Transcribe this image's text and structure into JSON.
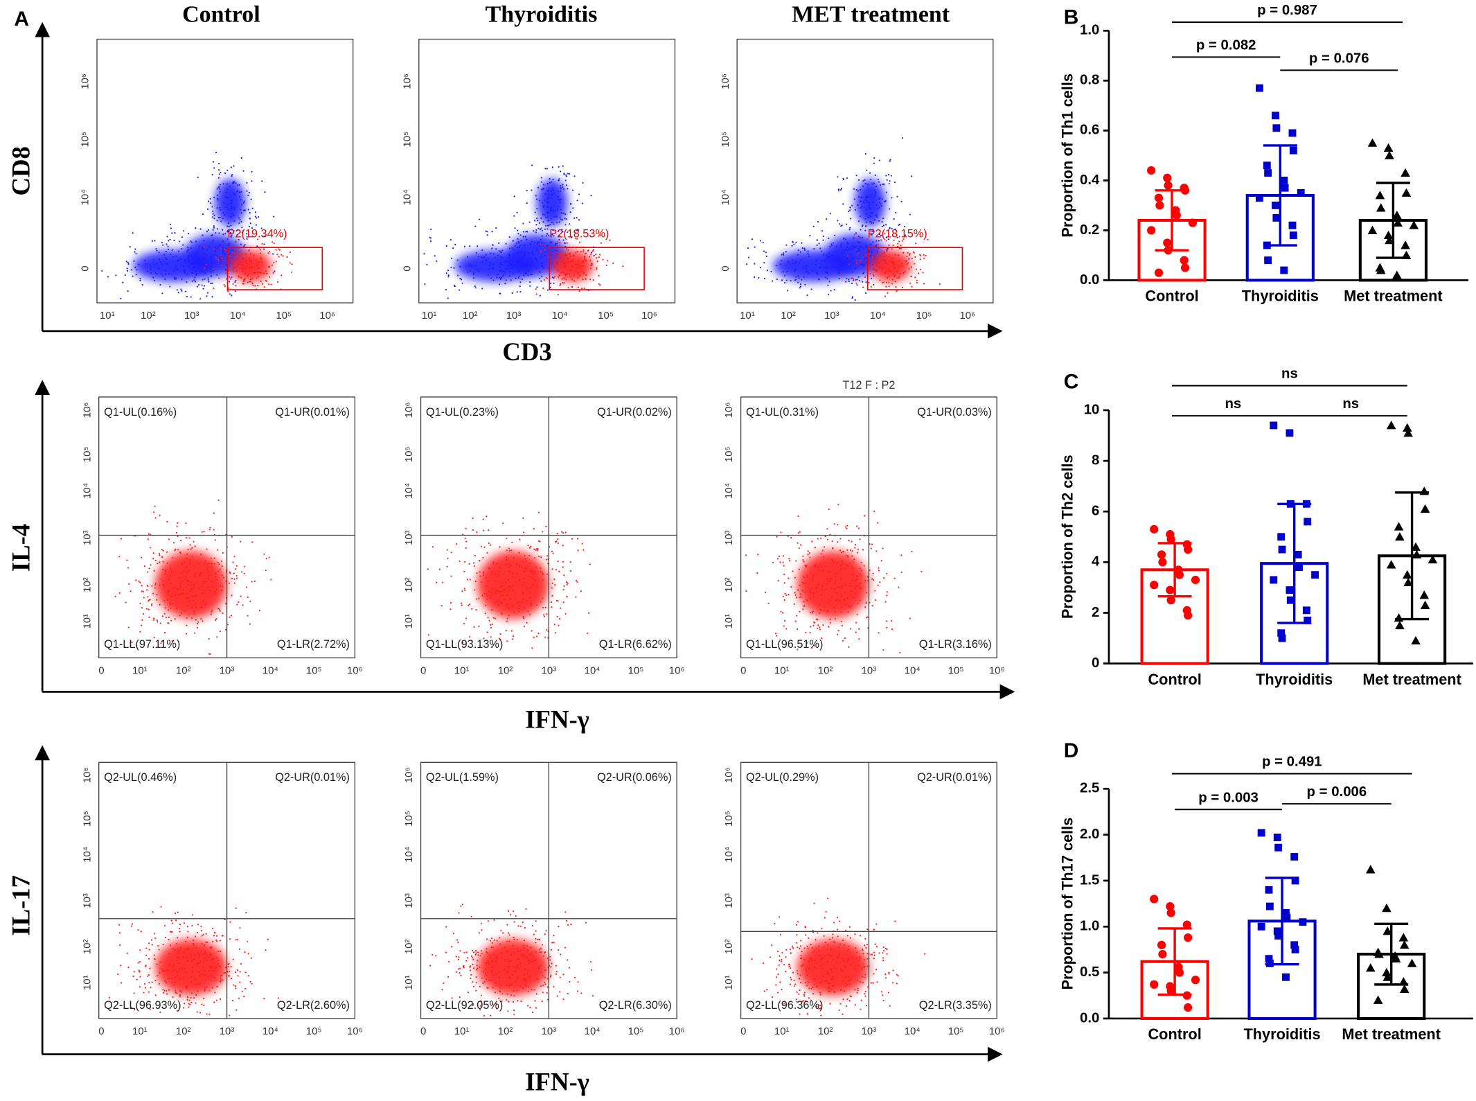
{
  "flow": {
    "label": "A",
    "columns": [
      "Control",
      "Thyroiditis",
      "MET treatment"
    ],
    "rows": [
      {
        "y_axis": "CD8",
        "x_axis": "CD3",
        "x_ticks": [
          "10¹",
          "10²",
          "10³",
          "10⁴",
          "10⁵",
          "10⁶"
        ],
        "y_ticks": [
          "0",
          "10⁴",
          "10⁵",
          "10⁶"
        ],
        "plots": [
          {
            "gates": [
              "P2(19.34%)"
            ]
          },
          {
            "gates": [
              "P2(18.53%)"
            ]
          },
          {
            "gates": [
              "P2(18.15%)"
            ]
          }
        ]
      },
      {
        "y_axis": "IL-4",
        "x_axis": "IFN-γ",
        "x_ticks": [
          "0",
          "10¹",
          "10²",
          "10³",
          "10⁴",
          "10⁵",
          "10⁶"
        ],
        "y_ticks": [
          "10¹",
          "10²",
          "10³",
          "10⁴",
          "10⁵",
          "10⁶"
        ],
        "plots": [
          {
            "gates": [
              "Q1-UL(0.16%)",
              "Q1-UR(0.01%)",
              "Q1-LL(97.11%)",
              "Q1-LR(2.72%)"
            ]
          },
          {
            "gates": [
              "Q1-UL(0.23%)",
              "Q1-UR(0.02%)",
              "Q1-LL(93.13%)",
              "Q1-LR(6.62%)"
            ]
          },
          {
            "title": "T12 F : P2",
            "gates": [
              "Q1-UL(0.31%)",
              "Q1-UR(0.03%)",
              "Q1-LL(96.51%)",
              "Q1-LR(3.16%)"
            ]
          }
        ]
      },
      {
        "y_axis": "IL-17",
        "x_axis": "IFN-γ",
        "x_ticks": [
          "0",
          "10¹",
          "10²",
          "10³",
          "10⁴",
          "10⁵",
          "10⁶"
        ],
        "y_ticks": [
          "10¹",
          "10²",
          "10³",
          "10⁴",
          "10⁵",
          "10⁶"
        ],
        "plots": [
          {
            "gates": [
              "Q2-UL(0.46%)",
              "Q2-UR(0.01%)",
              "Q2-LL(96.93%)",
              "Q2-LR(2.60%)"
            ]
          },
          {
            "gates": [
              "Q2-UL(1.59%)",
              "Q2-UR(0.06%)",
              "Q2-LL(92.05%)",
              "Q2-LR(6.30%)"
            ]
          },
          {
            "gates": [
              "Q2-UL(0.29%)",
              "Q2-UR(0.01%)",
              "Q2-LL(96.36%)",
              "Q2-LR(3.35%)"
            ]
          }
        ]
      }
    ]
  },
  "chart_data": [
    {
      "type": "bar",
      "label": "B",
      "ylabel": "Proportion of Th1 cells",
      "categories": [
        "Control",
        "Thyroiditis",
        "Met treatment"
      ],
      "colors": [
        "#ff0000",
        "#0000cc",
        "#000000"
      ],
      "values": [
        0.24,
        0.34,
        0.24
      ],
      "errors": [
        0.12,
        0.2,
        0.15
      ],
      "points": [
        [
          0.44,
          0.41,
          0.38,
          0.37,
          0.36,
          0.33,
          0.3,
          0.28,
          0.26,
          0.23,
          0.2,
          0.15,
          0.12,
          0.08,
          0.05,
          0.03
        ],
        [
          0.77,
          0.66,
          0.61,
          0.59,
          0.52,
          0.46,
          0.43,
          0.4,
          0.37,
          0.35,
          0.33,
          0.3,
          0.25,
          0.22,
          0.18,
          0.14,
          0.08,
          0.04
        ],
        [
          0.55,
          0.53,
          0.5,
          0.43,
          0.35,
          0.34,
          0.29,
          0.26,
          0.23,
          0.22,
          0.2,
          0.18,
          0.16,
          0.14,
          0.1,
          0.05,
          0.04,
          0.02
        ]
      ],
      "ylim": [
        0,
        1.0
      ],
      "yticks": [
        {
          "value": 0,
          "label": "0.0"
        },
        0.2,
        0.4,
        0.6,
        0.8,
        {
          "value": 1.0,
          "label": "1.0"
        }
      ],
      "comparisons": [
        "p = 0.082",
        "p = 0.076",
        "p = 0.987"
      ]
    },
    {
      "type": "bar",
      "label": "C",
      "ylabel": "Proportion of Th2 cells",
      "categories": [
        "Control",
        "Thyroiditis",
        "Met treatment"
      ],
      "colors": [
        "#ff0000",
        "#0000cc",
        "#000000"
      ],
      "values": [
        3.7,
        3.95,
        4.25
      ],
      "errors": [
        1.05,
        2.35,
        2.5
      ],
      "points": [
        [
          5.3,
          5.1,
          4.9,
          4.7,
          4.5,
          4.3,
          4.0,
          3.7,
          3.5,
          3.3,
          3.1,
          2.9,
          2.5,
          2.1,
          1.9
        ],
        [
          9.4,
          9.1,
          6.3,
          6.3,
          5.6,
          5.0,
          4.5,
          4.3,
          3.8,
          3.5,
          3.3,
          2.9,
          2.5,
          2.1,
          1.7,
          1.2,
          1.0
        ],
        [
          9.4,
          9.3,
          9.1,
          6.8,
          6.1,
          5.4,
          5.0,
          4.6,
          4.3,
          4.1,
          3.9,
          3.5,
          3.2,
          2.7,
          2.3,
          1.8,
          1.5,
          0.9
        ]
      ],
      "ylim": [
        0,
        10
      ],
      "yticks": [
        0,
        2,
        4,
        6,
        8,
        10
      ],
      "comparisons": [
        "ns",
        "ns",
        "ns"
      ]
    },
    {
      "type": "bar",
      "label": "D",
      "ylabel": "Proportion of Th17 cells",
      "categories": [
        "Control",
        "Thyroiditis",
        "Met treatment"
      ],
      "colors": [
        "#ff0000",
        "#0000cc",
        "#000000"
      ],
      "values": [
        0.62,
        1.06,
        0.7
      ],
      "errors": [
        0.36,
        0.47,
        0.33
      ],
      "points": [
        [
          1.3,
          1.22,
          1.15,
          1.02,
          0.88,
          0.8,
          0.7,
          0.56,
          0.5,
          0.42,
          0.37,
          0.35,
          0.3,
          0.25,
          0.12
        ],
        [
          2.02,
          1.97,
          1.86,
          1.76,
          1.5,
          1.4,
          1.22,
          1.15,
          1.1,
          1.05,
          1.0,
          0.95,
          0.9,
          0.8,
          0.75,
          0.65,
          0.6,
          0.45
        ],
        [
          1.62,
          1.2,
          0.95,
          0.88,
          0.8,
          0.72,
          0.7,
          0.68,
          0.65,
          0.6,
          0.55,
          0.5,
          0.45,
          0.4,
          0.32,
          0.2
        ]
      ],
      "ylim": [
        0,
        2.5
      ],
      "yticks": [
        {
          "value": 0,
          "label": "0.0"
        },
        0.5,
        {
          "value": 1.0,
          "label": "1.0"
        },
        1.5,
        {
          "value": 2.0,
          "label": "2.0"
        },
        2.5
      ],
      "comparisons": [
        "p = 0.003",
        "p = 0.006",
        "p = 0.491"
      ]
    }
  ]
}
